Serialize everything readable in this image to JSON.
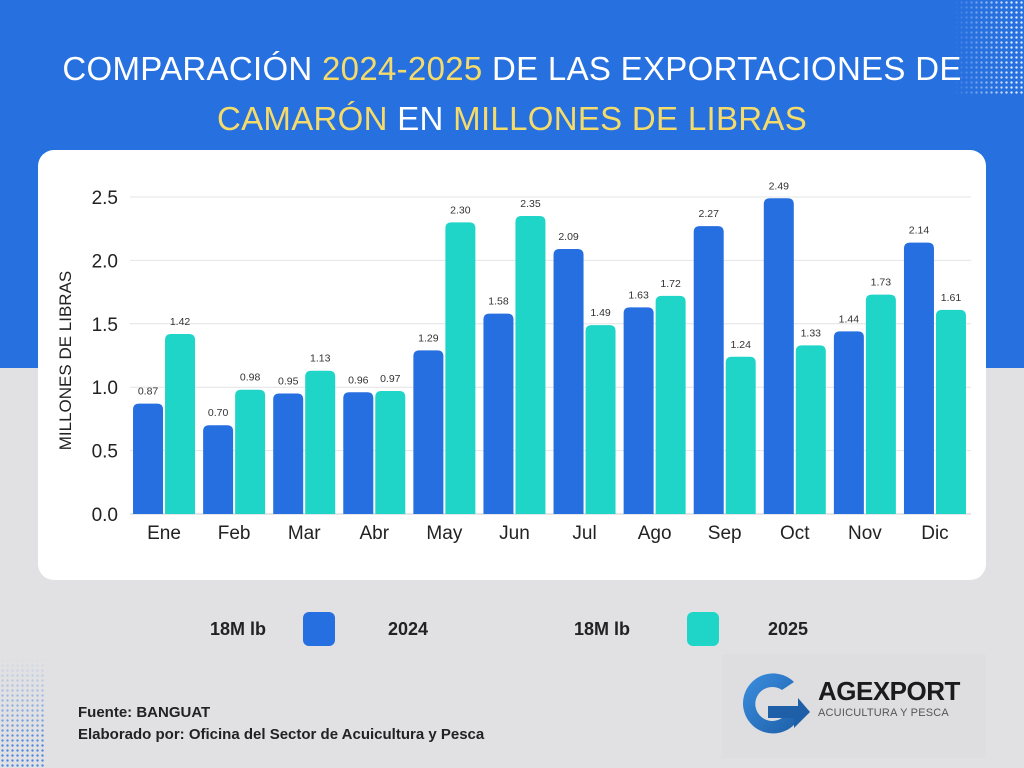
{
  "header": {
    "title_parts": [
      {
        "text": "COMPARACIÓN ",
        "highlight": false
      },
      {
        "text": "2024-2025",
        "highlight": true
      },
      {
        "text": " DE LAS EXPORTACIONES DE",
        "highlight": false
      }
    ],
    "subtitle_parts": [
      {
        "text": "CAMARÓN",
        "highlight": true
      },
      {
        "text": " EN ",
        "highlight": false
      },
      {
        "text": "MILLONES DE LIBRAS",
        "highlight": true
      }
    ]
  },
  "colors": {
    "background_top": "#2770e0",
    "background_bottom": "#e1e1e3",
    "title_text": "#ffffff",
    "title_highlight": "#f5db6a",
    "series_2024": "#256fe0",
    "series_2025": "#1fd5c7"
  },
  "legend": [
    {
      "total": "18M lb",
      "label": "2024",
      "color": "#256fe0"
    },
    {
      "total": "18M lb",
      "label": "2025",
      "color": "#1fd5c7"
    }
  ],
  "footer": {
    "source": "Fuente: BANGUAT",
    "prepared_by": "Elaborado por: Oficina del Sector de Acuicultura y Pesca"
  },
  "logo": {
    "name": "AGEXPORT",
    "subtitle": "ACUICULTURA Y PESCA"
  },
  "chart_data": {
    "type": "bar",
    "title": "COMPARACIÓN 2024-2025 DE LAS EXPORTACIONES DE CAMARÓN EN MILLONES DE LIBRAS",
    "xlabel": "",
    "ylabel": "MILLONES DE LIBRAS",
    "ylim": [
      0,
      2.5
    ],
    "yticks": [
      0.0,
      0.5,
      1.0,
      1.5,
      2.0,
      2.5
    ],
    "ytick_labels": [
      "0.0",
      "0.5",
      "1.0",
      "1.5",
      "2.0",
      "2.5"
    ],
    "grid": true,
    "legend_position": "bottom",
    "categories": [
      "Ene",
      "Feb",
      "Mar",
      "Abr",
      "May",
      "Jun",
      "Jul",
      "Ago",
      "Sep",
      "Oct",
      "Nov",
      "Dic"
    ],
    "series": [
      {
        "name": "2024",
        "color": "#256fe0",
        "values": [
          0.87,
          0.7,
          0.95,
          0.96,
          1.29,
          1.58,
          2.09,
          1.63,
          2.27,
          2.49,
          1.44,
          2.14
        ],
        "labels": [
          "0.87",
          "0.70",
          "0.95",
          "0.96",
          "1.29",
          "1.58",
          "2.09",
          "1.63",
          "2.27",
          "2.49",
          "1.44",
          "2.14"
        ]
      },
      {
        "name": "2025",
        "color": "#1fd5c7",
        "values": [
          1.42,
          0.98,
          1.13,
          0.97,
          2.3,
          2.35,
          1.49,
          1.72,
          1.24,
          1.33,
          1.73,
          1.61
        ],
        "labels": [
          "1.42",
          "0.98",
          "1.13",
          "0.97",
          "2.30",
          "2.35",
          "1.49",
          "1.72",
          "1.24",
          "1.33",
          "1.73",
          "1.61"
        ]
      }
    ]
  }
}
